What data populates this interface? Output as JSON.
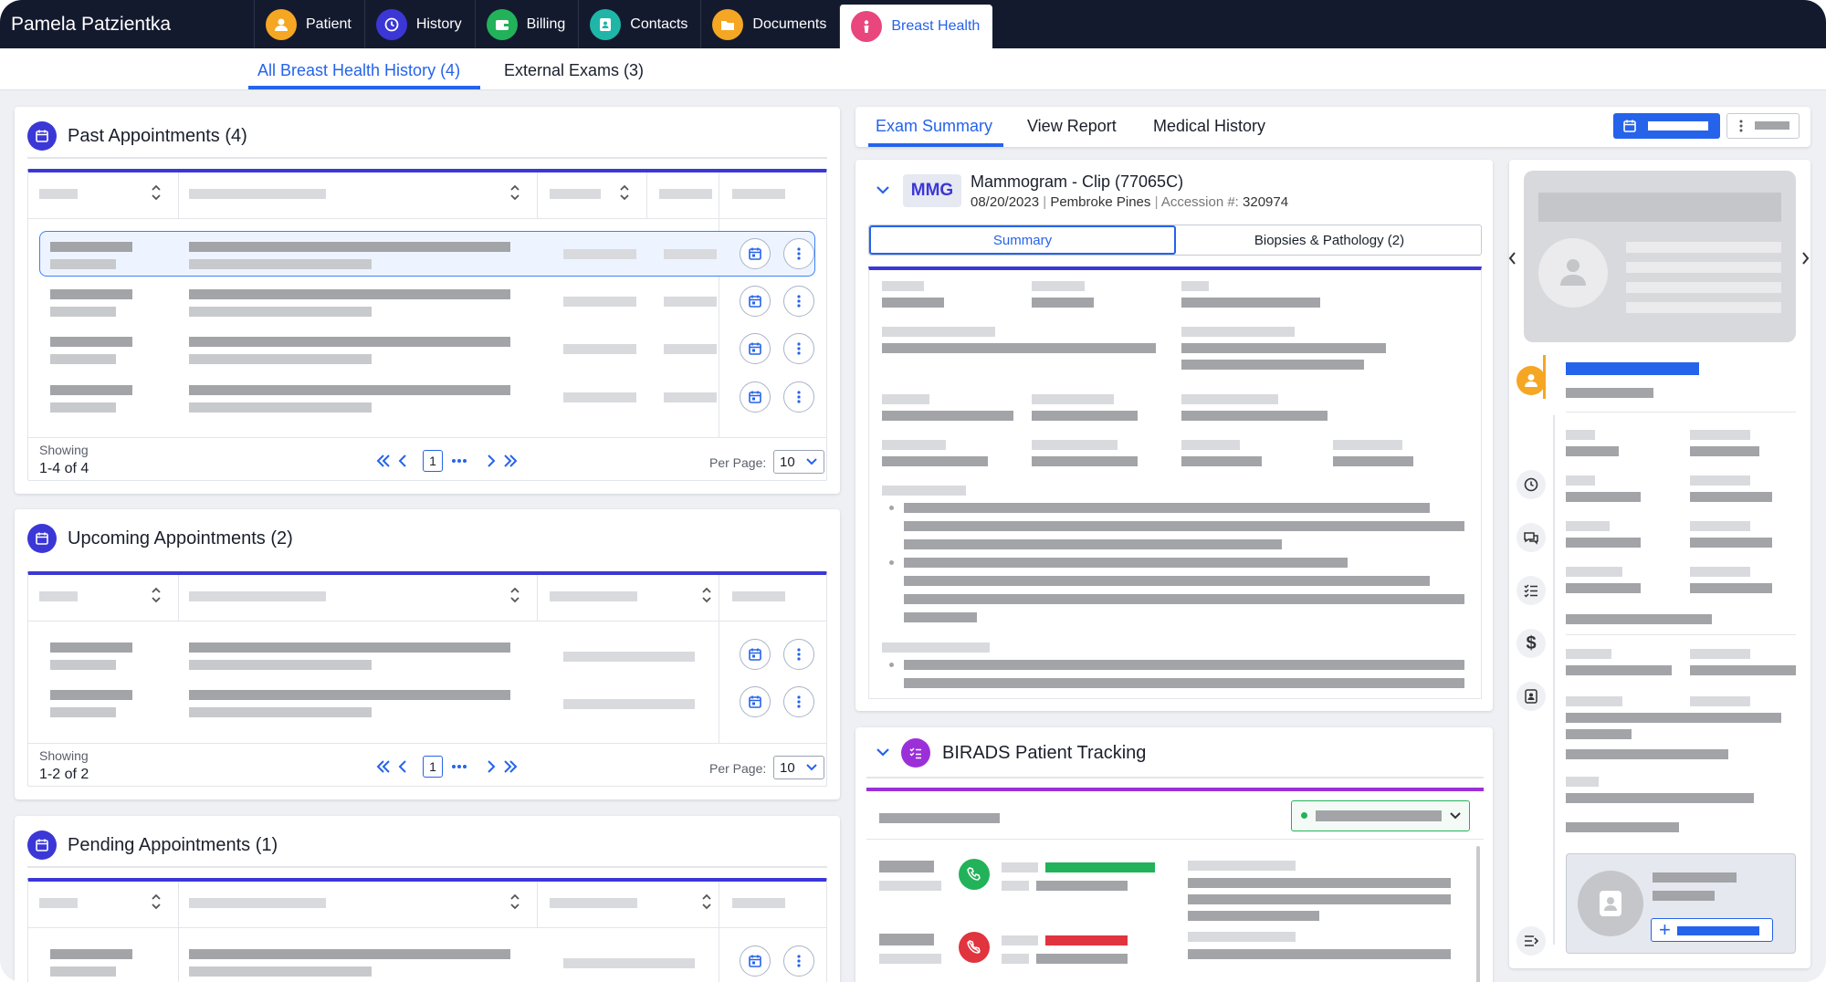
{
  "patient_name": "Pamela Patzientka",
  "patient_tabs": [
    {
      "label": "Patient",
      "icon": "person-icon",
      "color": "#f5a623"
    },
    {
      "label": "History",
      "icon": "history-icon",
      "color": "#3b37d6"
    },
    {
      "label": "Billing",
      "icon": "wallet-icon",
      "color": "#22b25a"
    },
    {
      "label": "Contacts",
      "icon": "contact-card-icon",
      "color": "#1fb6a8"
    },
    {
      "label": "Documents",
      "icon": "folder-icon",
      "color": "#f5a623"
    },
    {
      "label": "Breast Health",
      "icon": "ribbon-icon",
      "color": "#e8467c"
    }
  ],
  "sub_tabs": [
    "All Breast Health History (4)",
    "External Exams (3)"
  ],
  "past": {
    "title": "Past Appointments (4)",
    "showing_label": "Showing",
    "showing_value": "1-4 of 4",
    "page": "1",
    "per_page_label": "Per Page:",
    "per_page": "10"
  },
  "upcoming": {
    "title": "Upcoming Appointments (2)",
    "showing_label": "Showing",
    "showing_value": "1-2 of 2",
    "page": "1",
    "per_page_label": "Per Page:",
    "per_page": "10"
  },
  "pending": {
    "title": "Pending Appointments (1)"
  },
  "exam_tabs": [
    "Exam Summary",
    "View Report",
    "Medical History"
  ],
  "exam": {
    "badge": "MMG",
    "title": "Mammogram - Clip (77065C)",
    "date": "08/20/2023",
    "location": "Pembroke Pines",
    "accession_label": "Accession #:",
    "accession": "320974"
  },
  "exam_subtabs": [
    "Summary",
    "Biopsies & Pathology (2)"
  ],
  "birads": {
    "title": "BIRADS Patient Tracking"
  },
  "colors": {
    "accent": "#2563eb",
    "table_top": "#3b37d6",
    "purple": "#9b30d9",
    "green": "#22b25a",
    "red": "#e0343e",
    "orange": "#f5a623"
  }
}
